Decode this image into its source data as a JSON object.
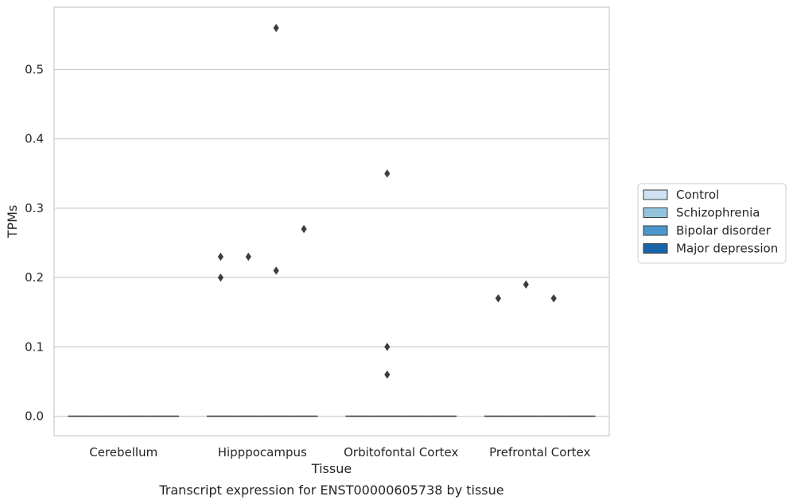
{
  "chart_data": {
    "type": "box",
    "title": "",
    "caption": "Transcript expression for ENST00000605738 by tissue",
    "xlabel": "Tissue",
    "ylabel": "TPMs",
    "ylim": [
      -0.028,
      0.59
    ],
    "yticks": [
      0.0,
      0.1,
      0.2,
      0.3,
      0.4,
      0.5
    ],
    "ytick_labels": [
      "0.0",
      "0.1",
      "0.2",
      "0.3",
      "0.4",
      "0.5"
    ],
    "grid": "horizontal",
    "legend_position": "right",
    "categories": [
      "Cerebellum",
      "Hipppocampus",
      "Orbitofontal Cortex",
      "Prefrontal Cortex"
    ],
    "series": [
      {
        "name": "Control",
        "color": "#cfe1f2",
        "median": [
          0,
          0,
          0,
          0
        ],
        "outliers": [
          [],
          [
            0.2,
            0.23
          ],
          [],
          [
            0.17
          ]
        ]
      },
      {
        "name": "Schizophrenia",
        "color": "#93c4de",
        "median": [
          0,
          0,
          0,
          0
        ],
        "outliers": [
          [],
          [
            0.23
          ],
          [
            0.35,
            0.1,
            0.06
          ],
          [
            0.19
          ]
        ]
      },
      {
        "name": "Bipolar disorder",
        "color": "#4a98c9",
        "median": [
          0,
          0,
          0,
          0
        ],
        "outliers": [
          [],
          [
            0.56,
            0.21
          ],
          [],
          [
            0.17
          ]
        ]
      },
      {
        "name": "Major depression",
        "color": "#1764ab",
        "median": [
          0,
          0,
          0,
          0
        ],
        "outliers": [
          [],
          [
            0.27
          ],
          [],
          []
        ]
      }
    ]
  }
}
